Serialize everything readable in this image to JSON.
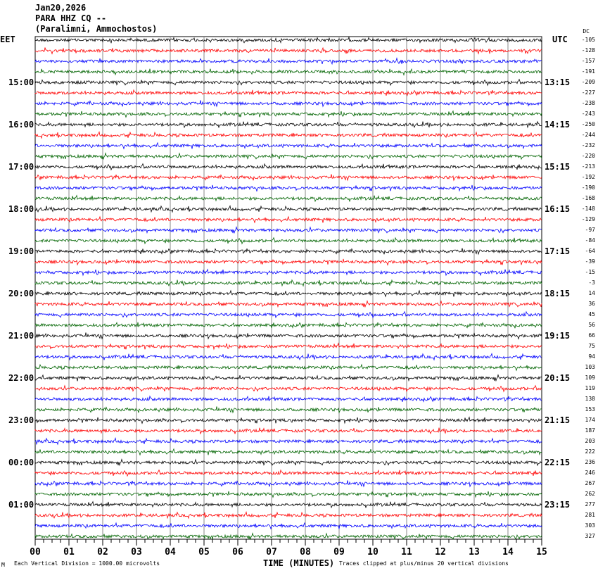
{
  "header": {
    "date": "Jan20,2026",
    "station": "PARA HHZ CQ --",
    "location": "(Paralimni, Ammochostos)"
  },
  "chart_data": {
    "type": "line",
    "title": "Jan20,2026 PARA HHZ CQ --",
    "left_timezone": "EET",
    "right_timezone": "UTC",
    "dc_label": "DC",
    "left_hour_labels": [
      "15:00",
      "16:00",
      "17:00",
      "18:00",
      "19:00",
      "20:00",
      "21:00",
      "22:00",
      "23:00",
      "00:00",
      "01:00"
    ],
    "right_hour_labels": [
      "13:15",
      "14:15",
      "15:15",
      "16:15",
      "17:15",
      "18:15",
      "19:15",
      "20:15",
      "21:15",
      "22:15",
      "23:15"
    ],
    "dc_offsets": [
      "-105",
      "-128",
      "-157",
      "-191",
      "-209",
      "-227",
      "-238",
      "-243",
      "-250",
      "-244",
      "-232",
      "-220",
      "-213",
      "-192",
      "-190",
      "-168",
      "-148",
      "-129",
      "-97",
      "-84",
      "-64",
      "-39",
      "-15",
      "-3",
      "14",
      "36",
      "45",
      "56",
      "66",
      "75",
      "94",
      "103",
      "109",
      "119",
      "138",
      "153",
      "174",
      "187",
      "203",
      "222",
      "236",
      "246",
      "267",
      "262",
      "277",
      "281",
      "303",
      "327"
    ],
    "trace_colors": [
      "#000000",
      "#ff0000",
      "#0000ff",
      "#006400"
    ],
    "x_ticks": [
      "00",
      "01",
      "02",
      "03",
      "04",
      "05",
      "06",
      "07",
      "08",
      "09",
      "10",
      "11",
      "12",
      "13",
      "14",
      "15"
    ],
    "xlim": [
      0,
      15
    ],
    "xlabel": "TIME (MINUTES)",
    "traces_per_hour": 4,
    "grid": true
  },
  "footer": {
    "scale": "Each Vertical Division = 1000.00 microvolts",
    "clip": "Traces clipped at plus/minus 20 vertical divisions",
    "mark": "M"
  }
}
